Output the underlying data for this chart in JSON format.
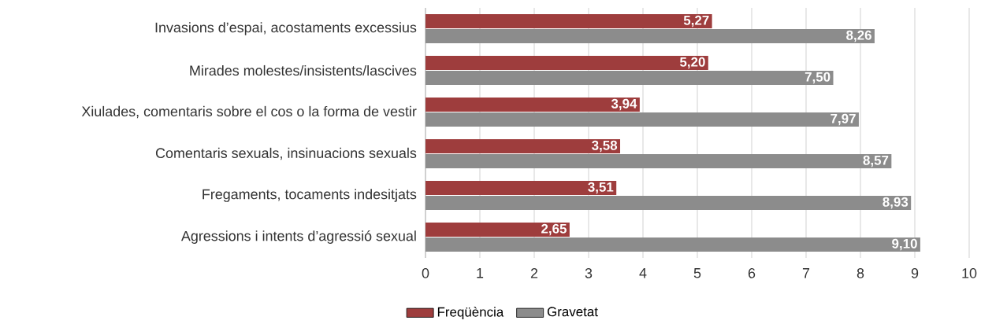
{
  "chart_data": {
    "type": "bar",
    "orientation": "horizontal",
    "categories": [
      "Invasions d’espai, acostaments excessius",
      "Mirades molestes/insistents/lascives",
      "Xiulades, comentaris sobre el cos o la forma de vestir",
      "Comentaris sexuals, insinuacions sexuals",
      "Fregaments, tocaments indesitjats",
      "Agressions i intents d’agressió sexual"
    ],
    "series": [
      {
        "name": "Freqüència",
        "color": "#9e3d3d",
        "values": [
          5.27,
          5.2,
          3.94,
          3.58,
          3.51,
          2.65
        ],
        "value_labels": [
          "5,27",
          "5,20",
          "3,94",
          "3,58",
          "3,51",
          "2,65"
        ]
      },
      {
        "name": "Gravetat",
        "color": "#8c8c8c",
        "values": [
          8.26,
          7.5,
          7.97,
          8.57,
          8.93,
          9.1
        ],
        "value_labels": [
          "8,26",
          "7,50",
          "7,97",
          "8,57",
          "8,93",
          "9,10"
        ]
      }
    ],
    "xlim": [
      0,
      10
    ],
    "xticks": [
      0,
      1,
      2,
      3,
      4,
      5,
      6,
      7,
      8,
      9,
      10
    ],
    "grid": "x",
    "legend": "bottom"
  }
}
